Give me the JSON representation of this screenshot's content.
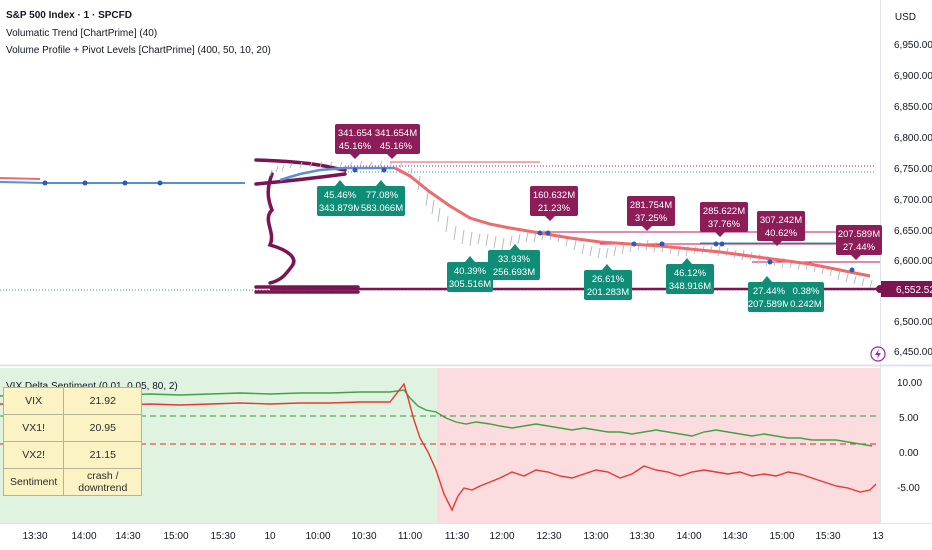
{
  "legend": {
    "symbol": "S&P 500 Index · 1 · SPCFD",
    "indicator1": "Volumatic Trend [ChartPrime] (40)",
    "indicator2": "Volume Profile + Pivot Levels [ChartPrime] (400, 50, 10, 20)"
  },
  "currency": "USD",
  "price_axis": [
    "6,950.00",
    "6,900.00",
    "6,850.00",
    "6,800.00",
    "6,750.00",
    "6,700.00",
    "6,650.00",
    "6,600.00",
    "6,550.00",
    "6,500.00",
    "6,450.00"
  ],
  "last_price": "6,552.52",
  "labels_above": [
    {
      "vol": "341.654",
      "pct": "45.16%"
    },
    {
      "vol": "341.654M",
      "pct": "45.16%"
    },
    {
      "vol": "160.632M",
      "pct": "21.23%"
    },
    {
      "vol": "281.754M",
      "pct": "37.25%"
    },
    {
      "vol": "285.622M",
      "pct": "37.76%"
    },
    {
      "vol": "307.242M",
      "pct": "40.62%"
    },
    {
      "vol": "207.589M",
      "pct": "27.44%"
    }
  ],
  "labels_below": [
    {
      "pct": "45.46%",
      "vol": "343.879M"
    },
    {
      "pct": "77.08%",
      "vol": "583.066M"
    },
    {
      "pct": "40.39%",
      "vol": "305.516M"
    },
    {
      "pct": "33.93%",
      "vol": "256.693M"
    },
    {
      "pct": "26.61%",
      "vol": "201.283M"
    },
    {
      "pct": "46.12%",
      "vol": "348.916M"
    },
    {
      "pct": "27.44%",
      "vol": "207.589M"
    },
    {
      "pct": "0.38%",
      "vol": "0.242M"
    }
  ],
  "indicator_panel": {
    "title": "VIX Delta Sentiment (0.01, 0.05, 80, 2)",
    "axis": [
      "10.00",
      "5.00",
      "0.00",
      "-5.00"
    ],
    "table": [
      {
        "key": "VIX",
        "value": "21.92"
      },
      {
        "key": "VX1!",
        "value": "20.95"
      },
      {
        "key": "VX2!",
        "value": "21.15"
      },
      {
        "key": "Sentiment",
        "value": "crash / downtrend"
      }
    ]
  },
  "time_axis": [
    "13:30",
    "14:00",
    "14:30",
    "15:00",
    "15:30",
    "10",
    "10:00",
    "10:30",
    "11:00",
    "11:30",
    "12:00",
    "12:30",
    "13:00",
    "13:30",
    "14:00",
    "14:30",
    "15:00",
    "15:30",
    "13"
  ],
  "colors": {
    "trend_up": "#5b8fd4",
    "trend_down": "#ef6a6a",
    "label_up": "#8c1d58",
    "label_down": "#0f8d77",
    "bull_bg": "#e0f3e0",
    "bear_bg": "#fbdcdf",
    "green_line": "#4caf50",
    "red_line": "#e53935",
    "profile": "#7b1450"
  }
}
